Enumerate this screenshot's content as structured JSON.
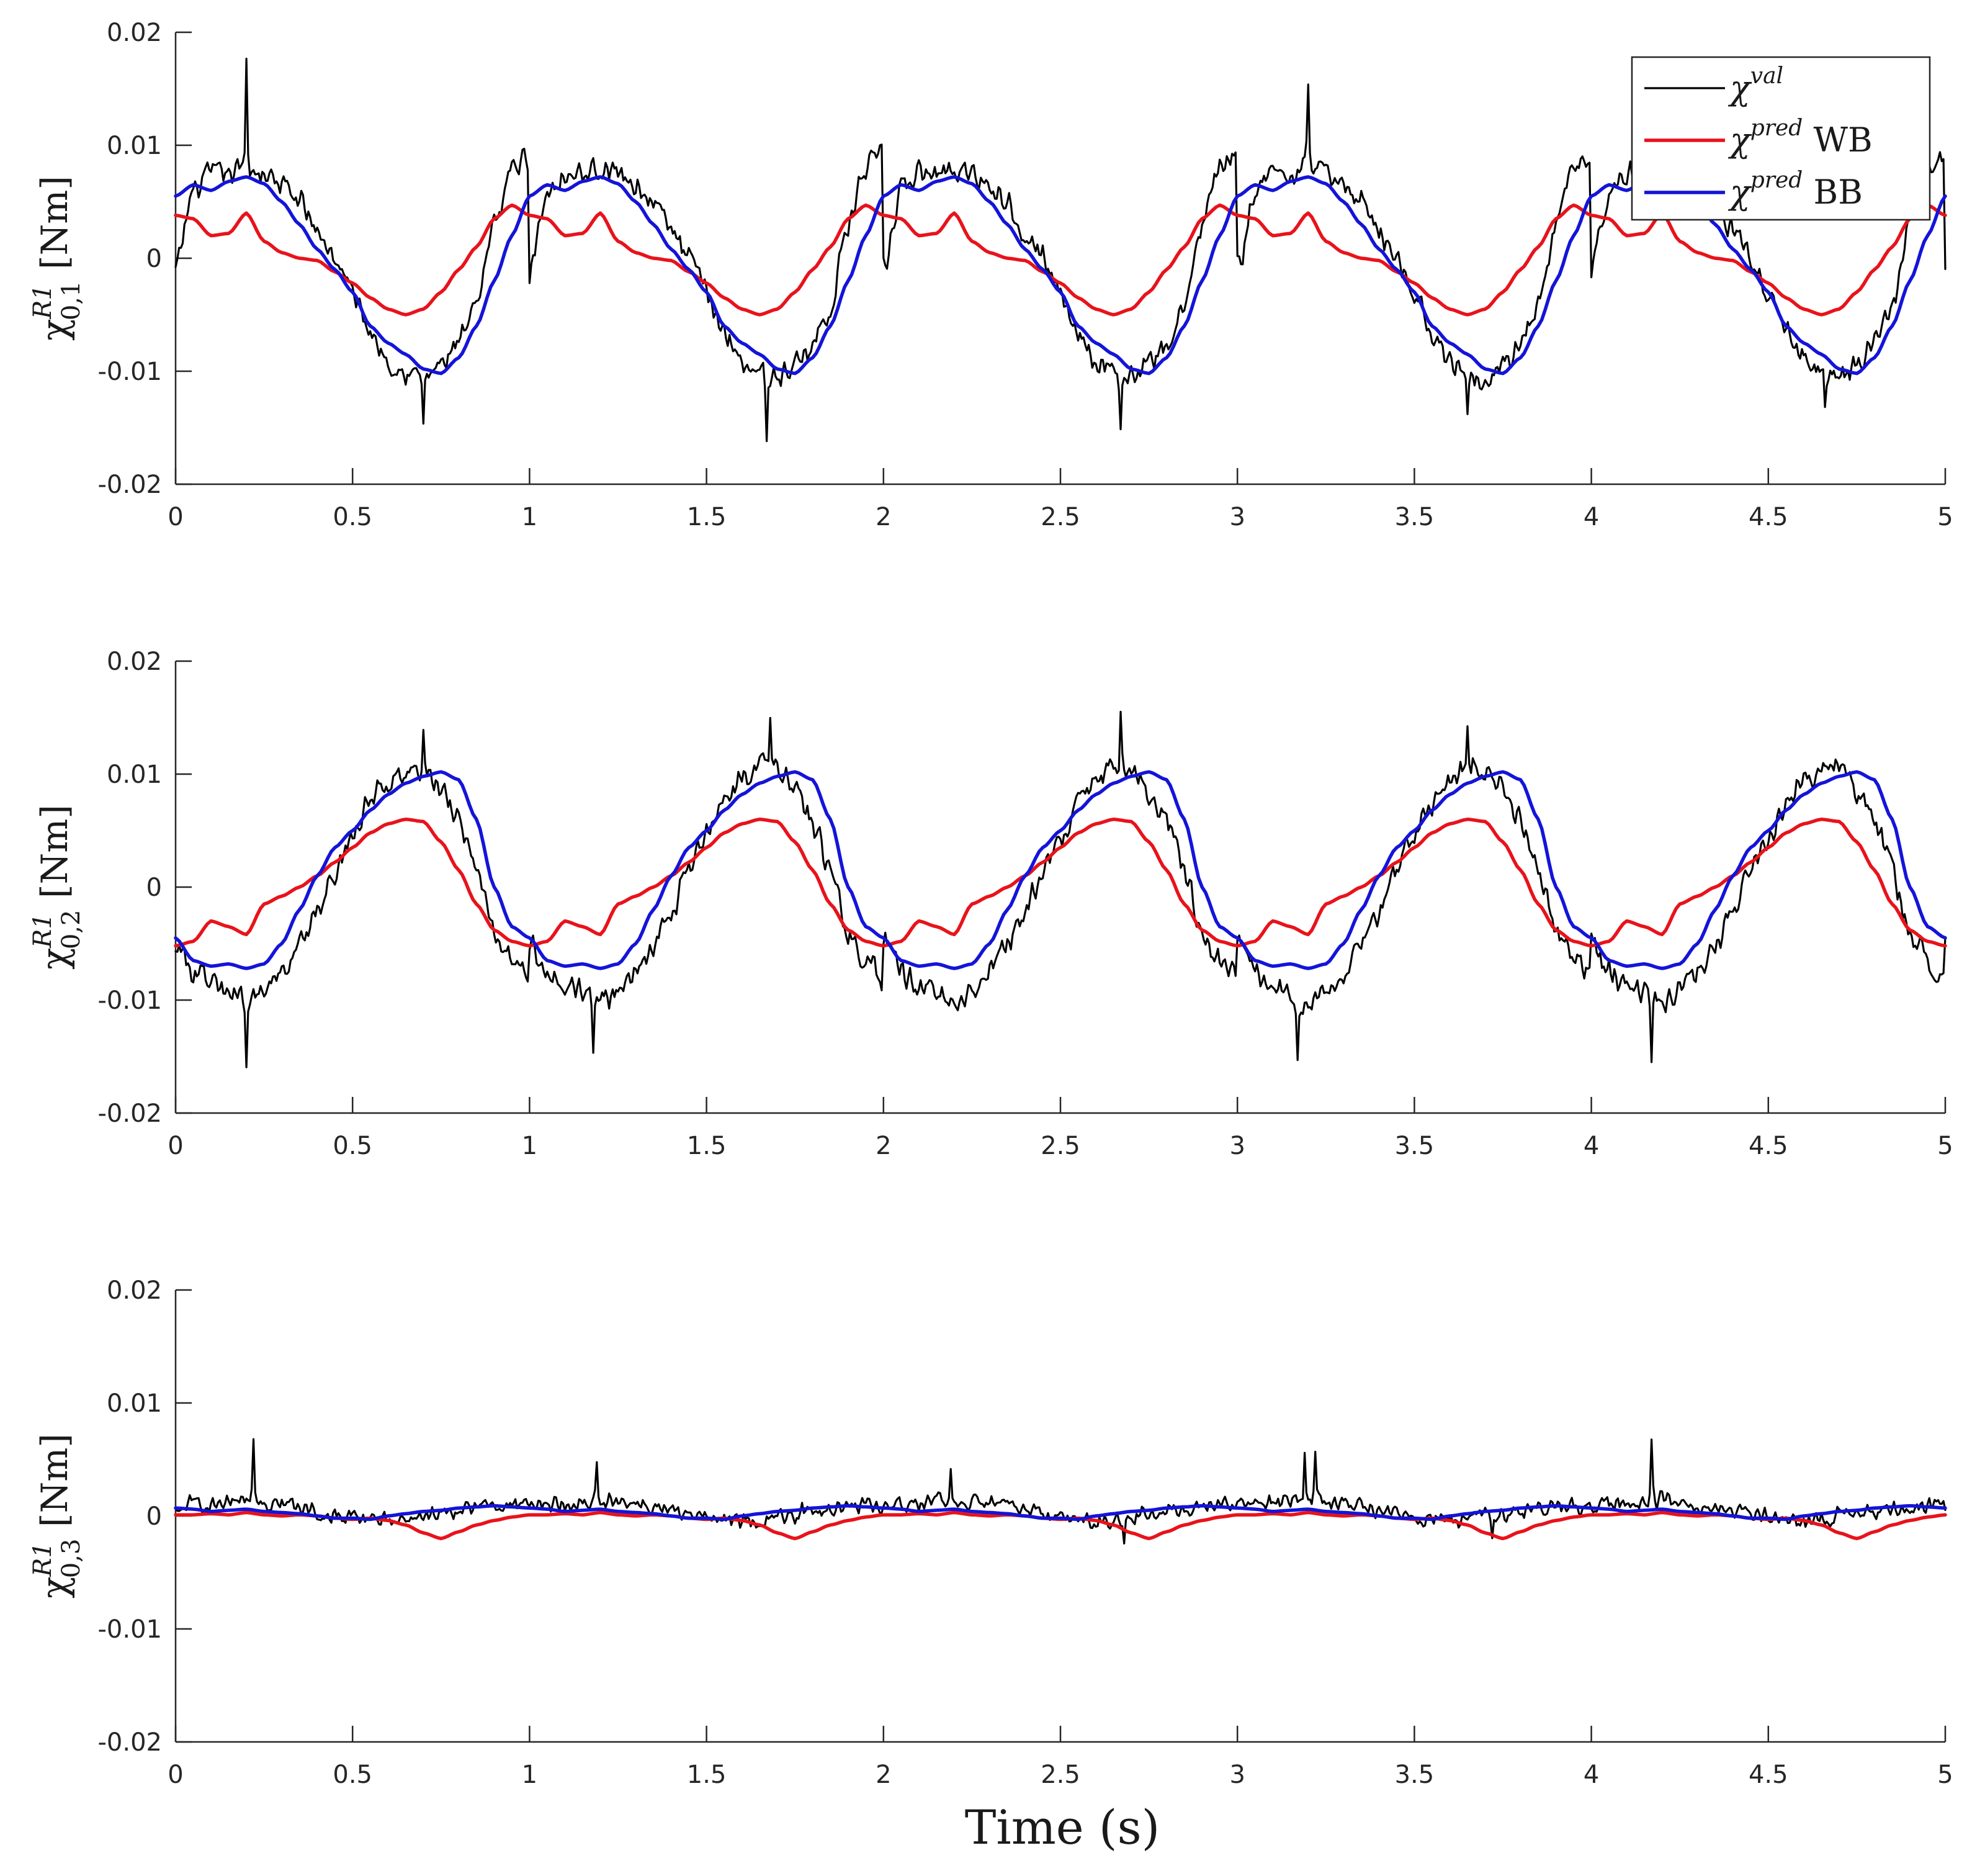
{
  "figure": {
    "xlabel": "Time (s)",
    "legend": {
      "position": "top-right of first panel",
      "entries": [
        {
          "key": "val",
          "symbol": "χ",
          "sup": "val",
          "suffix": "",
          "color": "#000000"
        },
        {
          "key": "wb",
          "symbol": "χ",
          "sup": "pred",
          "suffix": " WB",
          "color": "#e8131b"
        },
        {
          "key": "bb",
          "symbol": "χ",
          "sup": "pred",
          "suffix": " BB",
          "color": "#1414d9"
        }
      ]
    }
  },
  "chart_data": [
    {
      "type": "line",
      "panel": 1,
      "ylabel": {
        "main": "χ",
        "sup": "R1",
        "sub": "0,1",
        "unit": " [Nm]"
      },
      "xlim": [
        0,
        5
      ],
      "ylim": [
        -0.02,
        0.02
      ],
      "xticks": [
        0,
        0.5,
        1,
        1.5,
        2,
        2.5,
        3,
        3.5,
        4,
        4.5,
        5
      ],
      "xtick_labels": [
        "0",
        "0.5",
        "1",
        "1.5",
        "2",
        "2.5",
        "3",
        "3.5",
        "4",
        "4.5",
        "5"
      ],
      "yticks": [
        -0.02,
        -0.01,
        0,
        0.01,
        0.02
      ],
      "ytick_labels": [
        "-0.02",
        "-0.01",
        "0",
        "0.01",
        "0.02"
      ],
      "period": 1.0,
      "series": [
        {
          "name": "χval",
          "color": "#000000",
          "noise": 0.0013,
          "spikes": [
            [
              0.2,
              0.0095
            ],
            [
              0.7,
              -0.004
            ],
            [
              1.67,
              -0.006
            ],
            [
              2.67,
              -0.005
            ],
            [
              3.2,
              0.0075
            ],
            [
              3.65,
              -0.004
            ],
            [
              4.66,
              -0.003
            ]
          ],
          "x": [
            0,
            0.05,
            0.1,
            0.15,
            0.2,
            0.25,
            0.3,
            0.35,
            0.4,
            0.45,
            0.5,
            0.55,
            0.6,
            0.65,
            0.7,
            0.75,
            0.8,
            0.85,
            0.9,
            0.95,
            1.0
          ],
          "values": [
            -0.001,
            0.006,
            0.0075,
            0.0075,
            0.008,
            0.0075,
            0.0065,
            0.005,
            0.0025,
            0.0,
            -0.003,
            -0.0065,
            -0.009,
            -0.01,
            -0.0105,
            -0.0095,
            -0.0075,
            -0.0045,
            0.003,
            0.008,
            0.009
          ]
        },
        {
          "name": "χpred WB",
          "color": "#e8131b",
          "noise": 0.0,
          "spikes": [],
          "x": [
            0,
            0.05,
            0.1,
            0.15,
            0.2,
            0.25,
            0.3,
            0.35,
            0.4,
            0.45,
            0.5,
            0.55,
            0.6,
            0.65,
            0.7,
            0.75,
            0.8,
            0.85,
            0.9,
            0.95,
            1.0
          ],
          "values": [
            0.0038,
            0.0035,
            0.002,
            0.0022,
            0.004,
            0.0015,
            0.0005,
            0.0,
            -0.0002,
            -0.0012,
            -0.0022,
            -0.0035,
            -0.0045,
            -0.005,
            -0.0045,
            -0.003,
            -0.001,
            0.001,
            0.0035,
            0.0047,
            0.0038
          ]
        },
        {
          "name": "χpred BB",
          "color": "#1414d9",
          "noise": 0.0,
          "spikes": [],
          "x": [
            0,
            0.05,
            0.1,
            0.15,
            0.2,
            0.25,
            0.3,
            0.35,
            0.4,
            0.45,
            0.5,
            0.55,
            0.6,
            0.65,
            0.7,
            0.75,
            0.8,
            0.85,
            0.9,
            0.95,
            1.0
          ],
          "values": [
            0.0055,
            0.0065,
            0.006,
            0.0068,
            0.0072,
            0.0066,
            0.005,
            0.003,
            0.0008,
            -0.001,
            -0.003,
            -0.006,
            -0.0075,
            -0.0085,
            -0.0098,
            -0.0102,
            -0.0088,
            -0.006,
            -0.002,
            0.002,
            0.0055
          ]
        }
      ]
    },
    {
      "type": "line",
      "panel": 2,
      "ylabel": {
        "main": "χ",
        "sup": "R1",
        "sub": "0,2",
        "unit": " [Nm]"
      },
      "xlim": [
        0,
        5
      ],
      "ylim": [
        -0.02,
        0.02
      ],
      "xticks": [
        0,
        0.5,
        1,
        1.5,
        2,
        2.5,
        3,
        3.5,
        4,
        4.5,
        5
      ],
      "xtick_labels": [
        "0",
        "0.5",
        "1",
        "1.5",
        "2",
        "2.5",
        "3",
        "3.5",
        "4",
        "4.5",
        "5"
      ],
      "yticks": [
        -0.02,
        -0.01,
        0,
        0.01,
        0.02
      ],
      "ytick_labels": [
        "-0.02",
        "-0.01",
        "0",
        "0.01",
        "0.02"
      ],
      "period": 1.0,
      "series": [
        {
          "name": "χval",
          "color": "#000000",
          "noise": 0.0014,
          "spikes": [
            [
              0.2,
              -0.006
            ],
            [
              0.7,
              0.003
            ],
            [
              1.18,
              -0.005
            ],
            [
              1.68,
              0.005
            ],
            [
              2.67,
              0.0055
            ],
            [
              3.17,
              -0.005
            ],
            [
              3.65,
              0.0035
            ],
            [
              4.17,
              -0.005
            ]
          ],
          "x": [
            0,
            0.05,
            0.1,
            0.15,
            0.2,
            0.25,
            0.3,
            0.35,
            0.4,
            0.45,
            0.5,
            0.55,
            0.6,
            0.65,
            0.7,
            0.75,
            0.8,
            0.85,
            0.9,
            0.95,
            1.0
          ],
          "values": [
            -0.005,
            -0.0075,
            -0.0085,
            -0.0095,
            -0.01,
            -0.009,
            -0.0075,
            -0.005,
            -0.002,
            0.0015,
            0.0045,
            0.0075,
            0.0095,
            0.0105,
            0.0105,
            0.0085,
            0.006,
            0.0015,
            -0.004,
            -0.0065,
            -0.008
          ]
        },
        {
          "name": "χpred WB",
          "color": "#e8131b",
          "noise": 0.0,
          "spikes": [],
          "x": [
            0,
            0.05,
            0.1,
            0.15,
            0.2,
            0.25,
            0.3,
            0.35,
            0.4,
            0.45,
            0.5,
            0.55,
            0.6,
            0.65,
            0.7,
            0.75,
            0.8,
            0.85,
            0.9,
            0.95,
            1.0
          ],
          "values": [
            -0.0052,
            -0.0048,
            -0.003,
            -0.0035,
            -0.0042,
            -0.0015,
            -0.0008,
            0.0,
            0.001,
            0.0022,
            0.0035,
            0.0048,
            0.0056,
            0.006,
            0.0058,
            0.004,
            0.0015,
            -0.0015,
            -0.0038,
            -0.0048,
            -0.0052
          ]
        },
        {
          "name": "χpred BB",
          "color": "#1414d9",
          "noise": 0.0,
          "spikes": [],
          "x": [
            0,
            0.05,
            0.1,
            0.15,
            0.2,
            0.25,
            0.3,
            0.35,
            0.4,
            0.45,
            0.5,
            0.55,
            0.6,
            0.65,
            0.7,
            0.75,
            0.8,
            0.85,
            0.9,
            0.95,
            1.0
          ],
          "values": [
            -0.0045,
            -0.0065,
            -0.007,
            -0.0068,
            -0.0072,
            -0.0068,
            -0.005,
            -0.002,
            0.001,
            0.0035,
            0.005,
            0.0068,
            0.0082,
            0.0092,
            0.0098,
            0.0102,
            0.0095,
            0.006,
            0.0,
            -0.0035,
            -0.0045
          ]
        }
      ]
    },
    {
      "type": "line",
      "panel": 3,
      "ylabel": {
        "main": "χ",
        "sup": "R1",
        "sub": "0,3",
        "unit": " [Nm]"
      },
      "xlim": [
        0,
        5
      ],
      "ylim": [
        -0.02,
        0.02
      ],
      "xticks": [
        0,
        0.5,
        1,
        1.5,
        2,
        2.5,
        3,
        3.5,
        4,
        4.5,
        5
      ],
      "xtick_labels": [
        "0",
        "0.5",
        "1",
        "1.5",
        "2",
        "2.5",
        "3",
        "3.5",
        "4",
        "4.5",
        "5"
      ],
      "yticks": [
        -0.02,
        -0.01,
        0,
        0.01,
        0.02
      ],
      "ytick_labels": [
        "-0.02",
        "-0.01",
        "0",
        "0.01",
        "0.02"
      ],
      "period": 1.0,
      "series": [
        {
          "name": "χval",
          "color": "#000000",
          "noise": 0.0009,
          "spikes": [
            [
              0.22,
              0.0055
            ],
            [
              1.19,
              0.0035
            ],
            [
              2.19,
              0.0035
            ],
            [
              3.19,
              0.0045
            ],
            [
              3.22,
              0.004
            ],
            [
              4.17,
              0.0055
            ],
            [
              2.68,
              -0.0025
            ],
            [
              3.72,
              -0.0022
            ]
          ],
          "x": [
            0,
            0.05,
            0.1,
            0.15,
            0.2,
            0.25,
            0.3,
            0.35,
            0.4,
            0.45,
            0.5,
            0.55,
            0.6,
            0.65,
            0.7,
            0.75,
            0.8,
            0.85,
            0.9,
            0.95,
            1.0
          ],
          "values": [
            0.0008,
            0.001,
            0.0012,
            0.0013,
            0.0014,
            0.0012,
            0.001,
            0.0008,
            0.0004,
            0.0001,
            -0.0001,
            -0.0003,
            -0.0005,
            -0.0003,
            0.0,
            0.0002,
            0.0004,
            0.0006,
            0.0008,
            0.0009,
            0.0008
          ]
        },
        {
          "name": "χpred WB",
          "color": "#e8131b",
          "noise": 0.0,
          "spikes": [],
          "x": [
            0,
            0.05,
            0.1,
            0.15,
            0.2,
            0.25,
            0.3,
            0.35,
            0.4,
            0.45,
            0.5,
            0.55,
            0.6,
            0.65,
            0.7,
            0.75,
            0.8,
            0.85,
            0.9,
            0.95,
            1.0
          ],
          "values": [
            0.0001,
            0.0001,
            0.0002,
            0.0001,
            0.0003,
            0.0001,
            0.0,
            0.0001,
            0.0,
            -0.0002,
            -0.0003,
            -0.0002,
            -0.0004,
            -0.0008,
            -0.0015,
            -0.002,
            -0.0014,
            -0.0008,
            -0.0004,
            -0.0001,
            0.0001
          ]
        },
        {
          "name": "χpred BB",
          "color": "#1414d9",
          "noise": 0.0,
          "spikes": [],
          "x": [
            0,
            0.05,
            0.1,
            0.15,
            0.2,
            0.25,
            0.3,
            0.35,
            0.4,
            0.45,
            0.5,
            0.55,
            0.6,
            0.65,
            0.7,
            0.75,
            0.8,
            0.85,
            0.9,
            0.95,
            1.0
          ],
          "values": [
            0.0007,
            0.0006,
            0.0004,
            0.0005,
            0.0006,
            0.0004,
            0.0003,
            0.0002,
            0.0,
            -0.0002,
            -0.0002,
            -0.0003,
            0.0,
            0.0002,
            0.0004,
            0.0005,
            0.0007,
            0.0008,
            0.0009,
            0.0008,
            0.0007
          ]
        }
      ]
    }
  ]
}
